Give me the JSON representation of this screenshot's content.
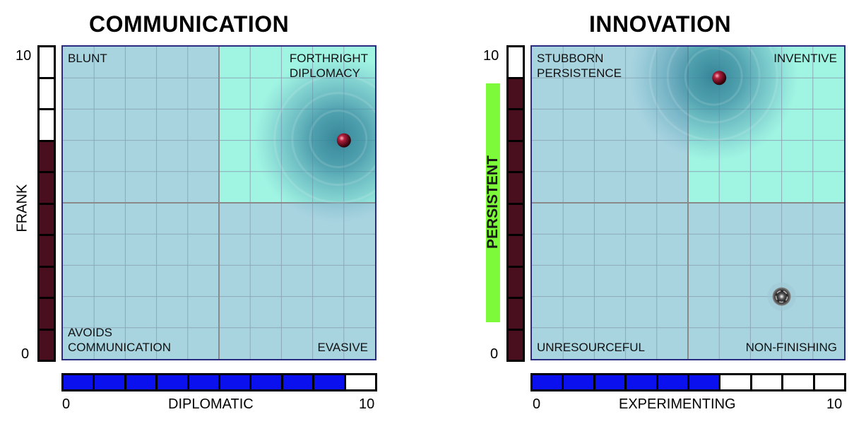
{
  "colors": {
    "plot_bg": "#a8d4e0",
    "highlight": "#9ff5e2",
    "grid": "#8ea8b8",
    "divider": "#8a8a8a",
    "frame": "#2a2a80",
    "vertical_fill": "#4a0f1f",
    "horizontal_fill": "#0a10ee",
    "persistent_pill": "#7dfa3a",
    "marker": "#7a1428"
  },
  "chart_data": [
    {
      "type": "scatter",
      "title": "COMMUNICATION",
      "xlabel": "DIPLOMATIC",
      "ylabel": "FRANK",
      "xlim": [
        0,
        10
      ],
      "ylim": [
        0,
        10
      ],
      "x_ticks": [
        "0",
        "10"
      ],
      "y_ticks": [
        "0",
        "10"
      ],
      "x_score": 9,
      "y_score": 7,
      "highlight_quadrant": "top-right",
      "quadrants": {
        "top_left": "BLUNT",
        "top_right": "FORTHRIGHT\nDIPLOMACY",
        "bottom_left": "AVOIDS\nCOMMUNICATION",
        "bottom_right": "EVASIVE"
      },
      "points": [
        {
          "x": 9.0,
          "y": 7.0,
          "style": "marker",
          "halo": true
        }
      ],
      "grid": true
    },
    {
      "type": "scatter",
      "title": "INNOVATION",
      "xlabel": "EXPERIMENTING",
      "ylabel": "",
      "xlim": [
        0,
        10
      ],
      "ylim": [
        0,
        10
      ],
      "x_ticks": [
        "0",
        "10"
      ],
      "y_ticks": [
        "0",
        "10"
      ],
      "x_score": 6,
      "y_score": 9,
      "highlight_quadrant": "top-right",
      "badge": {
        "text": "PERSISTENT",
        "from": 1.2,
        "to": 8.8
      },
      "quadrants": {
        "top_left": "STUBBORN\nPERSISTENCE",
        "top_right": "INVENTIVE",
        "bottom_left": "UNRESOURCEFUL",
        "bottom_right": "NON-FINISHING"
      },
      "points": [
        {
          "x": 6.0,
          "y": 9.0,
          "style": "marker",
          "halo": true
        },
        {
          "x": 8.0,
          "y": 2.0,
          "style": "swirl",
          "halo": false
        }
      ],
      "grid": true
    }
  ]
}
